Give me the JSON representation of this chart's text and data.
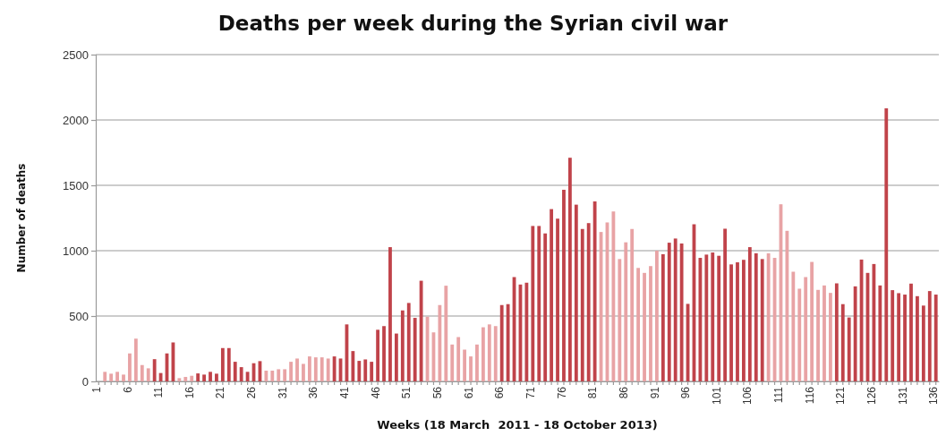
{
  "chart_data": {
    "type": "bar",
    "title": "Deaths per week during the Syrian civil war",
    "xlabel": "Weeks (18 March  2011 - 18 October 2013)",
    "ylabel": "Number of deaths",
    "categories": [
      "1",
      null,
      null,
      null,
      null,
      "6",
      null,
      null,
      null,
      null,
      "11",
      null,
      null,
      null,
      null,
      "16",
      null,
      null,
      null,
      null,
      "21",
      null,
      null,
      null,
      null,
      "26",
      null,
      null,
      null,
      null,
      "31",
      null,
      null,
      null,
      null,
      "36",
      null,
      null,
      null,
      null,
      "41",
      null,
      null,
      null,
      null,
      "46",
      null,
      null,
      null,
      null,
      "51",
      null,
      null,
      null,
      null,
      "56",
      null,
      null,
      null,
      null,
      "61",
      null,
      null,
      null,
      null,
      "66",
      null,
      null,
      null,
      null,
      "71",
      null,
      null,
      null,
      null,
      "76",
      null,
      null,
      null,
      null,
      "81",
      null,
      null,
      null,
      null,
      "86",
      null,
      null,
      null,
      null,
      "91",
      null,
      null,
      null,
      null,
      "96",
      null,
      null,
      null,
      null,
      "101",
      null,
      null,
      null,
      null,
      "106",
      null,
      null,
      null,
      null,
      "111",
      null,
      null,
      null,
      null,
      "116",
      null,
      null,
      null,
      null,
      "121",
      null,
      null,
      null,
      null,
      "126",
      null,
      null,
      null,
      null,
      "131",
      null,
      null,
      null,
      null,
      "136"
    ],
    "values": [
      0,
      73,
      59,
      73,
      52,
      214,
      327,
      125,
      100,
      170,
      64,
      214,
      298,
      25,
      34,
      43,
      61,
      52,
      73,
      59,
      255,
      255,
      150,
      109,
      73,
      139,
      155,
      82,
      82,
      93,
      93,
      150,
      175,
      134,
      191,
      184,
      184,
      175,
      191,
      175,
      436,
      232,
      157,
      168,
      150,
      395,
      423,
      1027,
      366,
      543,
      600,
      486,
      770,
      495,
      375,
      584,
      732,
      282,
      339,
      243,
      191,
      282,
      414,
      436,
      423,
      584,
      591,
      798,
      741,
      755,
      1189,
      1189,
      1132,
      1318,
      1245,
      1466,
      1711,
      1352,
      1166,
      1211,
      1377,
      1143,
      1216,
      1300,
      936,
      1064,
      1166,
      868,
      830,
      882,
      1000,
      973,
      1061,
      1093,
      1055,
      593,
      1202,
      945,
      970,
      986,
      961,
      1168,
      895,
      911,
      930,
      1027,
      980,
      936,
      980,
      945,
      1355,
      1152,
      839,
      709,
      798,
      914,
      700,
      734,
      677,
      750,
      591,
      489,
      727,
      932,
      830,
      898,
      734,
      2089,
      698,
      675,
      664,
      748,
      652,
      580,
      691,
      664
    ],
    "colors": [
      "#e8a3a5",
      "#e8a3a5",
      "#e8a3a5",
      "#e8a3a5",
      "#e8a3a5",
      "#e8a3a5",
      "#e8a3a5",
      "#e8a3a5",
      "#e8a3a5",
      "#c0434a",
      "#c0434a",
      "#c0434a",
      "#c0434a",
      "#e8a3a5",
      "#e8a3a5",
      "#e8a3a5",
      "#c0434a",
      "#c0434a",
      "#c0434a",
      "#c0434a",
      "#c0434a",
      "#c0434a",
      "#c0434a",
      "#c0434a",
      "#c0434a",
      "#c0434a",
      "#c0434a",
      "#e8a3a5",
      "#e8a3a5",
      "#e8a3a5",
      "#e8a3a5",
      "#e8a3a5",
      "#e8a3a5",
      "#e8a3a5",
      "#e8a3a5",
      "#e8a3a5",
      "#e8a3a5",
      "#e8a3a5",
      "#c0434a",
      "#c0434a",
      "#c0434a",
      "#c0434a",
      "#c0434a",
      "#c0434a",
      "#c0434a",
      "#c0434a",
      "#c0434a",
      "#c0434a",
      "#c0434a",
      "#c0434a",
      "#c0434a",
      "#c0434a",
      "#c0434a",
      "#e8a3a5",
      "#e8a3a5",
      "#e8a3a5",
      "#e8a3a5",
      "#e8a3a5",
      "#e8a3a5",
      "#e8a3a5",
      "#e8a3a5",
      "#e8a3a5",
      "#e8a3a5",
      "#e8a3a5",
      "#e8a3a5",
      "#c0434a",
      "#c0434a",
      "#c0434a",
      "#c0434a",
      "#c0434a",
      "#c0434a",
      "#c0434a",
      "#c0434a",
      "#c0434a",
      "#c0434a",
      "#c0434a",
      "#c0434a",
      "#c0434a",
      "#c0434a",
      "#c0434a",
      "#c0434a",
      "#e8a3a5",
      "#e8a3a5",
      "#e8a3a5",
      "#e8a3a5",
      "#e8a3a5",
      "#e8a3a5",
      "#e8a3a5",
      "#e8a3a5",
      "#e8a3a5",
      "#e8a3a5",
      "#c0434a",
      "#c0434a",
      "#c0434a",
      "#c0434a",
      "#c0434a",
      "#c0434a",
      "#c0434a",
      "#c0434a",
      "#c0434a",
      "#c0434a",
      "#c0434a",
      "#c0434a",
      "#c0434a",
      "#c0434a",
      "#c0434a",
      "#c0434a",
      "#c0434a",
      "#e8a3a5",
      "#e8a3a5",
      "#e8a3a5",
      "#e8a3a5",
      "#e8a3a5",
      "#e8a3a5",
      "#e8a3a5",
      "#e8a3a5",
      "#e8a3a5",
      "#e8a3a5",
      "#e8a3a5",
      "#c0434a",
      "#c0434a",
      "#c0434a",
      "#c0434a",
      "#c0434a",
      "#c0434a",
      "#c0434a",
      "#c0434a",
      "#c0434a",
      "#c0434a",
      "#c0434a",
      "#c0434a",
      "#c0434a",
      "#c0434a",
      "#c0434a",
      "#c0434a",
      "#c0434a"
    ],
    "ylim": [
      0,
      2500
    ],
    "yticks": [
      0,
      500,
      1000,
      1500,
      2000,
      2500
    ],
    "grid": "y"
  }
}
